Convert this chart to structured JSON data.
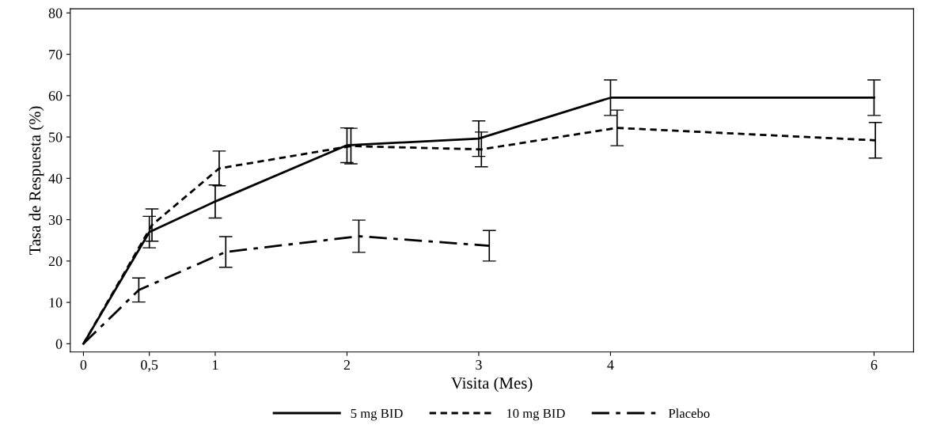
{
  "chart_data": {
    "type": "line",
    "xlabel": "Visita (Mes)",
    "ylabel": "Tasa de Respuesta (%)",
    "xlim": [
      -0.1,
      6.3
    ],
    "xticks": [
      0,
      {
        "value": 0.5,
        "label": "0,5"
      },
      1,
      2,
      3,
      4,
      6
    ],
    "ylim": [
      -2,
      81
    ],
    "yticks": [
      0,
      10,
      20,
      30,
      40,
      50,
      60,
      70,
      80
    ],
    "grid": false,
    "legend": "bottom",
    "marker": "none",
    "series": [
      {
        "name": "5 mg BID",
        "color": "#000000",
        "line_style": "solid",
        "x": [
          0,
          0.5,
          1,
          2,
          3,
          4,
          6
        ],
        "values": [
          0,
          27,
          34.4,
          48,
          49.6,
          59.5,
          59.5
        ],
        "errors": [
          null,
          3.8,
          4,
          4.2,
          4.3,
          4.3,
          4.3
        ]
      },
      {
        "name": "10 mg BID",
        "color": "#000000",
        "line_style": "dotted",
        "x": [
          0,
          0.52,
          1.03,
          2.03,
          3.02,
          4.05,
          6.01
        ],
        "values": [
          0,
          28.7,
          42.4,
          47.8,
          47,
          52.2,
          49.2
        ],
        "errors": [
          null,
          3.9,
          4.2,
          4.3,
          4.2,
          4.3,
          4.3
        ]
      },
      {
        "name": "Placebo",
        "color": "#000000",
        "line_style": "dashdot",
        "x": [
          0,
          0.42,
          1.08,
          2.09,
          3.08
        ],
        "values": [
          0,
          13,
          22.2,
          26,
          23.7
        ],
        "errors": [
          null,
          2.9,
          3.7,
          3.9,
          3.7
        ]
      }
    ]
  }
}
